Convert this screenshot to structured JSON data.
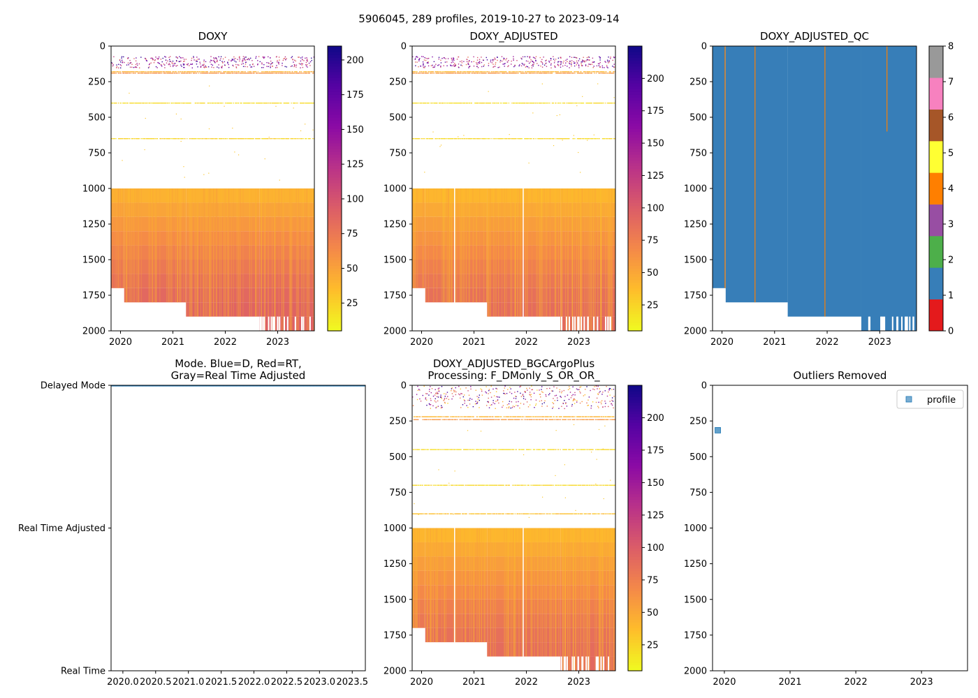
{
  "suptitle": "5906045, 289 profiles, 2019-10-27 to 2023-09-14",
  "chart_data": [
    {
      "id": "doxy",
      "type": "heatmap",
      "title": "DOXY",
      "xlim": [
        2019.82,
        2023.7
      ],
      "ylim": [
        2000,
        0
      ],
      "xticks": [
        2020,
        2021,
        2022,
        2023
      ],
      "xtick_labels": [
        "2020",
        "2021",
        "2022",
        "2023"
      ],
      "yticks": [
        0,
        250,
        500,
        750,
        1000,
        1250,
        1500,
        1750,
        2000
      ],
      "ytick_labels": [
        "0",
        "250",
        "500",
        "750",
        "1000",
        "1250",
        "1500",
        "1750",
        "2000"
      ],
      "colormap": "plasma_r",
      "colorbar": {
        "range": [
          5,
          210
        ],
        "ticks": [
          25,
          50,
          75,
          100,
          125,
          150,
          175,
          200
        ],
        "tick_labels": [
          "25",
          "50",
          "75",
          "100",
          "125",
          "150",
          "175",
          "200"
        ]
      },
      "bands": [
        {
          "y0": 1000,
          "y1": 1100,
          "value": 40
        },
        {
          "y0": 1100,
          "y1": 1200,
          "value": 48
        },
        {
          "y0": 1200,
          "y1": 1300,
          "value": 55
        },
        {
          "y0": 1300,
          "y1": 1400,
          "value": 62
        },
        {
          "y0": 1400,
          "y1": 1500,
          "value": 68
        },
        {
          "y0": 1500,
          "y1": 1600,
          "value": 74
        },
        {
          "y0": 1600,
          "y1": 1700,
          "value": 80
        },
        {
          "y0": 1700,
          "y1": 1800,
          "value": 85
        },
        {
          "y0": 1800,
          "y1": 1900,
          "value": 88
        },
        {
          "y0": 1900,
          "y1": 2000,
          "value": 90
        }
      ],
      "bottom_steps": [
        {
          "x0": 2019.82,
          "x1": 2020.07,
          "ymax": 1700
        },
        {
          "x0": 2020.07,
          "x1": 2021.25,
          "ymax": 1800
        },
        {
          "x0": 2021.25,
          "x1": 2022.65,
          "ymax": 1900
        },
        {
          "x0": 2022.65,
          "x1": 2023.7,
          "ymax": 2000
        }
      ],
      "sparse_lines": [
        {
          "y": 180,
          "value": 40
        },
        {
          "y": 190,
          "value": 60
        },
        {
          "y": 400,
          "value": 20
        },
        {
          "y": 650,
          "value": 22
        }
      ],
      "scatter_band": {
        "y0": 70,
        "y1": 150,
        "vmin": 80,
        "vmax": 200
      },
      "white_gaps": []
    },
    {
      "id": "doxy_adjusted",
      "type": "heatmap",
      "title": "DOXY_ADJUSTED",
      "xlim": [
        2019.82,
        2023.7
      ],
      "ylim": [
        2000,
        0
      ],
      "xticks": [
        2020,
        2021,
        2022,
        2023
      ],
      "xtick_labels": [
        "2020",
        "2021",
        "2022",
        "2023"
      ],
      "yticks": [
        0,
        250,
        500,
        750,
        1000,
        1250,
        1500,
        1750,
        2000
      ],
      "ytick_labels": [
        "0",
        "250",
        "500",
        "750",
        "1000",
        "1250",
        "1500",
        "1750",
        "2000"
      ],
      "colormap": "plasma_r",
      "colorbar": {
        "range": [
          5,
          225
        ],
        "ticks": [
          25,
          50,
          75,
          100,
          125,
          150,
          175,
          200
        ],
        "tick_labels": [
          "25",
          "50",
          "75",
          "100",
          "125",
          "150",
          "175",
          "200"
        ]
      },
      "bands": [
        {
          "y0": 1000,
          "y1": 1100,
          "value": 40
        },
        {
          "y0": 1100,
          "y1": 1200,
          "value": 48
        },
        {
          "y0": 1200,
          "y1": 1300,
          "value": 55
        },
        {
          "y0": 1300,
          "y1": 1400,
          "value": 62
        },
        {
          "y0": 1400,
          "y1": 1500,
          "value": 68
        },
        {
          "y0": 1500,
          "y1": 1600,
          "value": 74
        },
        {
          "y0": 1600,
          "y1": 1700,
          "value": 80
        },
        {
          "y0": 1700,
          "y1": 1800,
          "value": 85
        },
        {
          "y0": 1800,
          "y1": 1900,
          "value": 88
        },
        {
          "y0": 1900,
          "y1": 2000,
          "value": 90
        }
      ],
      "bottom_steps": [
        {
          "x0": 2019.82,
          "x1": 2020.07,
          "ymax": 1700
        },
        {
          "x0": 2020.07,
          "x1": 2021.25,
          "ymax": 1800
        },
        {
          "x0": 2021.25,
          "x1": 2022.65,
          "ymax": 1900
        },
        {
          "x0": 2022.65,
          "x1": 2023.7,
          "ymax": 2000
        }
      ],
      "sparse_lines": [
        {
          "y": 180,
          "value": 40
        },
        {
          "y": 190,
          "value": 60
        },
        {
          "y": 400,
          "value": 20
        },
        {
          "y": 650,
          "value": 22
        }
      ],
      "scatter_band": {
        "y0": 70,
        "y1": 150,
        "vmin": 80,
        "vmax": 210
      },
      "white_gaps": [
        2020.62,
        2021.93
      ]
    },
    {
      "id": "doxy_adjusted_qc",
      "type": "heatmap",
      "title": "DOXY_ADJUSTED_QC",
      "xlim": [
        2019.82,
        2023.7
      ],
      "ylim": [
        2000,
        0
      ],
      "xticks": [
        2020,
        2021,
        2022,
        2023
      ],
      "xtick_labels": [
        "2020",
        "2021",
        "2022",
        "2023"
      ],
      "yticks": [
        0,
        250,
        500,
        750,
        1000,
        1250,
        1500,
        1750,
        2000
      ],
      "ytick_labels": [
        "0",
        "250",
        "500",
        "750",
        "1000",
        "1250",
        "1500",
        "1750",
        "2000"
      ],
      "fill_value": 1,
      "categories": [
        {
          "value": 0,
          "color": "#e41a1c"
        },
        {
          "value": 1,
          "color": "#377eb8"
        },
        {
          "value": 2,
          "color": "#4daf4a"
        },
        {
          "value": 3,
          "color": "#984ea3"
        },
        {
          "value": 4,
          "color": "#ff7f00"
        },
        {
          "value": 5,
          "color": "#ffff33"
        },
        {
          "value": 6,
          "color": "#a65628"
        },
        {
          "value": 7,
          "color": "#f781bf"
        },
        {
          "value": 8,
          "color": "#999999"
        }
      ],
      "colorbar": {
        "range": [
          0,
          8
        ],
        "ticks": [
          0,
          1,
          2,
          3,
          4,
          5,
          6,
          7,
          8
        ],
        "tick_labels": [
          "0",
          "1",
          "2",
          "3",
          "4",
          "5",
          "6",
          "7",
          "8"
        ]
      },
      "bottom_steps": [
        {
          "x0": 2019.82,
          "x1": 2020.07,
          "ymax": 1700
        },
        {
          "x0": 2020.07,
          "x1": 2021.25,
          "ymax": 1800
        },
        {
          "x0": 2021.25,
          "x1": 2022.65,
          "ymax": 1900
        },
        {
          "x0": 2022.65,
          "x1": 2023.7,
          "ymax": 2000
        }
      ],
      "qc_lines": [
        {
          "x": 2020.05,
          "y0": 0,
          "y1": 1700,
          "value": 4
        },
        {
          "x": 2020.62,
          "y0": 0,
          "y1": 1800,
          "value": 4
        },
        {
          "x": 2021.95,
          "y0": 0,
          "y1": 1900,
          "value": 4
        },
        {
          "x": 2023.13,
          "y0": 0,
          "y1": 600,
          "value": 4
        }
      ]
    },
    {
      "id": "mode",
      "type": "scatter",
      "title_lines": [
        "Mode. Blue=D, Red=RT,",
        "Gray=Real Time Adjusted"
      ],
      "xlim": [
        2019.82,
        2023.7
      ],
      "ylim": [
        0,
        2
      ],
      "xticks": [
        2020.0,
        2020.5,
        2021.0,
        2021.5,
        2022.0,
        2022.5,
        2023.0,
        2023.5
      ],
      "xtick_labels": [
        "2020.0",
        "2020.5",
        "2021.0",
        "2021.5",
        "2022.0",
        "2022.5",
        "2023.0",
        "2023.5"
      ],
      "yticks": [
        0,
        1,
        2
      ],
      "ytick_labels": [
        "Real Time",
        "Real Time Adjusted",
        "Delayed Mode"
      ],
      "series": [
        {
          "name": "Delayed Mode",
          "y": 2,
          "x_range": [
            2019.82,
            2023.7
          ],
          "color": "#1f77b4",
          "count": 289
        }
      ]
    },
    {
      "id": "doxy_adjusted_bgcargoplus",
      "type": "heatmap",
      "title_lines": [
        "DOXY_ADJUSTED_BGCArgoPlus",
        "Processing: F_DMonly_S_OR_OR_"
      ],
      "xlim": [
        2019.82,
        2023.7
      ],
      "ylim": [
        2000,
        0
      ],
      "xticks": [
        2020,
        2021,
        2022,
        2023
      ],
      "xtick_labels": [
        "2020",
        "2021",
        "2022",
        "2023"
      ],
      "yticks": [
        0,
        250,
        500,
        750,
        1000,
        1250,
        1500,
        1750,
        2000
      ],
      "ytick_labels": [
        "0",
        "250",
        "500",
        "750",
        "1000",
        "1250",
        "1500",
        "1750",
        "2000"
      ],
      "colormap": "plasma_r",
      "colorbar": {
        "range": [
          5,
          225
        ],
        "ticks": [
          25,
          50,
          75,
          100,
          125,
          150,
          175,
          200
        ],
        "tick_labels": [
          "25",
          "50",
          "75",
          "100",
          "125",
          "150",
          "175",
          "200"
        ]
      },
      "bands": [
        {
          "y0": 1000,
          "y1": 1100,
          "value": 40
        },
        {
          "y0": 1100,
          "y1": 1200,
          "value": 48
        },
        {
          "y0": 1200,
          "y1": 1300,
          "value": 55
        },
        {
          "y0": 1300,
          "y1": 1400,
          "value": 62
        },
        {
          "y0": 1400,
          "y1": 1500,
          "value": 68
        },
        {
          "y0": 1500,
          "y1": 1600,
          "value": 74
        },
        {
          "y0": 1600,
          "y1": 1700,
          "value": 80
        },
        {
          "y0": 1700,
          "y1": 1800,
          "value": 85
        },
        {
          "y0": 1800,
          "y1": 1900,
          "value": 88
        },
        {
          "y0": 1900,
          "y1": 2000,
          "value": 90
        }
      ],
      "bottom_steps": [
        {
          "x0": 2019.82,
          "x1": 2020.07,
          "ymax": 1700
        },
        {
          "x0": 2020.07,
          "x1": 2021.25,
          "ymax": 1800
        },
        {
          "x0": 2021.25,
          "x1": 2022.65,
          "ymax": 1900
        },
        {
          "x0": 2022.65,
          "x1": 2023.7,
          "ymax": 2000
        }
      ],
      "sparse_lines": [
        {
          "y": 220,
          "value": 40
        },
        {
          "y": 240,
          "value": 60
        },
        {
          "y": 450,
          "value": 20
        },
        {
          "y": 700,
          "value": 22
        },
        {
          "y": 900,
          "value": 35
        }
      ],
      "scatter_band": {
        "y0": 0,
        "y1": 160,
        "vmin": 20,
        "vmax": 220
      },
      "white_gaps": [
        2020.62,
        2021.93
      ]
    },
    {
      "id": "outliers",
      "type": "scatter",
      "title": "Outliers Removed",
      "xlim": [
        2019.82,
        2023.7
      ],
      "ylim": [
        2000,
        0
      ],
      "xticks": [
        2020,
        2021,
        2022,
        2023
      ],
      "xtick_labels": [
        "2020",
        "2021",
        "2022",
        "2023"
      ],
      "yticks": [
        0,
        250,
        500,
        750,
        1000,
        1250,
        1500,
        1750,
        2000
      ],
      "ytick_labels": [
        "0",
        "250",
        "500",
        "750",
        "1000",
        "1250",
        "1500",
        "1750",
        "2000"
      ],
      "legend": {
        "label": "profile",
        "position": "top-right"
      },
      "points": [
        {
          "x": 2019.9,
          "y": 315,
          "color": "#1f77b4"
        }
      ]
    }
  ]
}
